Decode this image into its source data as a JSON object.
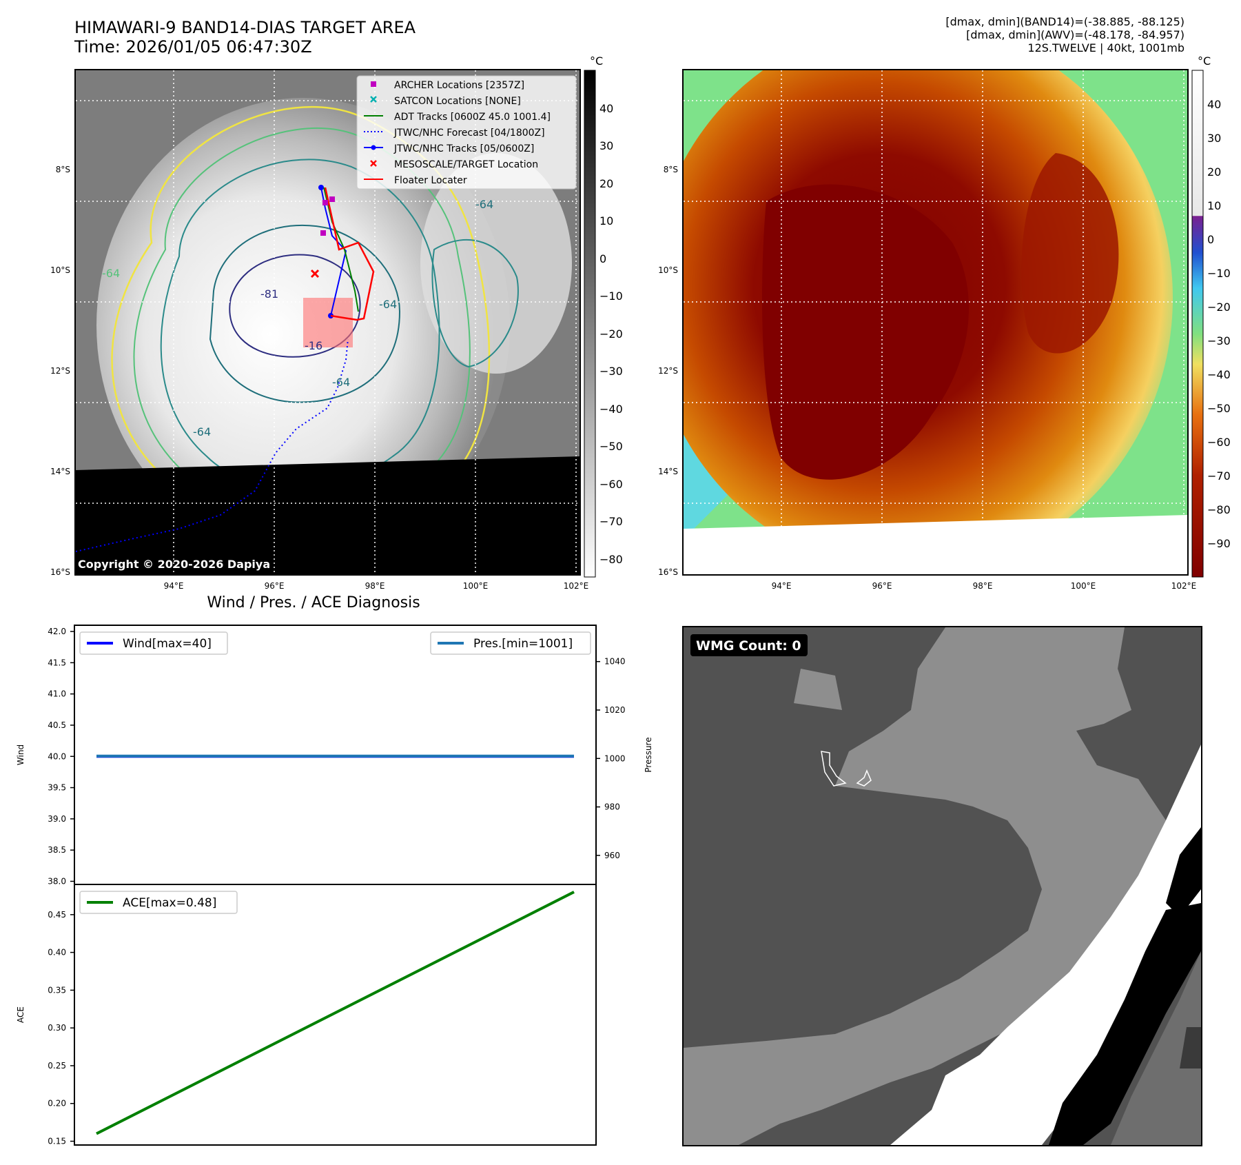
{
  "header": {
    "title_line1": "HIMAWARI-9 BAND14-DIAS TARGET AREA",
    "title_line2": "Time: 2026/01/05 06:47:30Z",
    "info_line1": "[dmax, dmin](BAND14)=(-38.885, -88.125)",
    "info_line2": "[dmax, dmin](AWV)=(-48.178, -84.957)",
    "info_line3": "12S.TWELVE | 40kt, 1001mb"
  },
  "map": {
    "lat_labels": [
      "8°S",
      "10°S",
      "12°S",
      "14°S",
      "16°S"
    ],
    "lon_labels": [
      "94°E",
      "96°E",
      "98°E",
      "100°E",
      "102°E"
    ],
    "copyright": "Copyright © 2020-2026 Dapiya",
    "contour_labels": [
      "-81",
      "-64",
      "-64",
      "-64",
      "-16",
      "-64",
      "-64"
    ],
    "legend": [
      {
        "label": "ARCHER Locations [2357Z]",
        "color": "#c000c0",
        "marker": "square"
      },
      {
        "label": "SATCON Locations [NONE]",
        "color": "#00b0b0",
        "marker": "x"
      },
      {
        "label": "ADT Tracks [0600Z 45.0 1001.4]",
        "color": "#008000",
        "marker": "line"
      },
      {
        "label": "JTWC/NHC Forecast [04/1800Z]",
        "color": "#0000ff",
        "marker": "dotted"
      },
      {
        "label": "JTWC/NHC Tracks [05/0600Z]",
        "color": "#0000ff",
        "marker": "line-dot"
      },
      {
        "label": "MESOSCALE/TARGET Location",
        "color": "#ff0000",
        "marker": "x"
      },
      {
        "label": "Floater Locater",
        "color": "#ff0000",
        "marker": "line"
      }
    ]
  },
  "colorbar_left": {
    "unit": "°C",
    "ticks": [
      "40",
      "30",
      "20",
      "10",
      "0",
      "−10",
      "−20",
      "−30",
      "−40",
      "−50",
      "−60",
      "−70",
      "−80"
    ]
  },
  "colorbar_right": {
    "unit": "°C",
    "ticks": [
      "40",
      "30",
      "20",
      "10",
      "0",
      "−10",
      "−20",
      "−30",
      "−40",
      "−50",
      "−60",
      "−70",
      "−80",
      "−90"
    ]
  },
  "wmg": {
    "label": "WMG Count: 0"
  },
  "chart_data": [
    {
      "type": "line",
      "title": "Wind / Pres. / ACE Diagnosis",
      "ylabel": "Wind",
      "ylabel_right": "Pressure",
      "ylim": [
        37.95,
        42.1
      ],
      "ylim_right": [
        948,
        1055
      ],
      "yticks": [
        "42.0",
        "41.5",
        "41.0",
        "40.5",
        "40.0",
        "39.5",
        "39.0",
        "38.5",
        "38.0"
      ],
      "yticks_right": [
        "1040",
        "1020",
        "1000",
        "980",
        "960"
      ],
      "series": [
        {
          "name": "Wind[max=40]",
          "color": "#0000ff",
          "axis": "left",
          "x": [
            0,
            1
          ],
          "values": [
            40,
            40
          ]
        },
        {
          "name": "Pres.[min=1001]",
          "color": "#1f77b4",
          "axis": "right",
          "x": [
            0,
            1
          ],
          "values": [
            1001,
            1001
          ]
        }
      ]
    },
    {
      "type": "line",
      "title": "",
      "ylabel": "ACE",
      "ylim": [
        0.145,
        0.49
      ],
      "yticks": [
        "0.45",
        "0.40",
        "0.35",
        "0.30",
        "0.25",
        "0.20",
        "0.15"
      ],
      "series": [
        {
          "name": "ACE[max=0.48]",
          "color": "#008000",
          "x": [
            0,
            1
          ],
          "values": [
            0.16,
            0.48
          ]
        }
      ]
    }
  ]
}
